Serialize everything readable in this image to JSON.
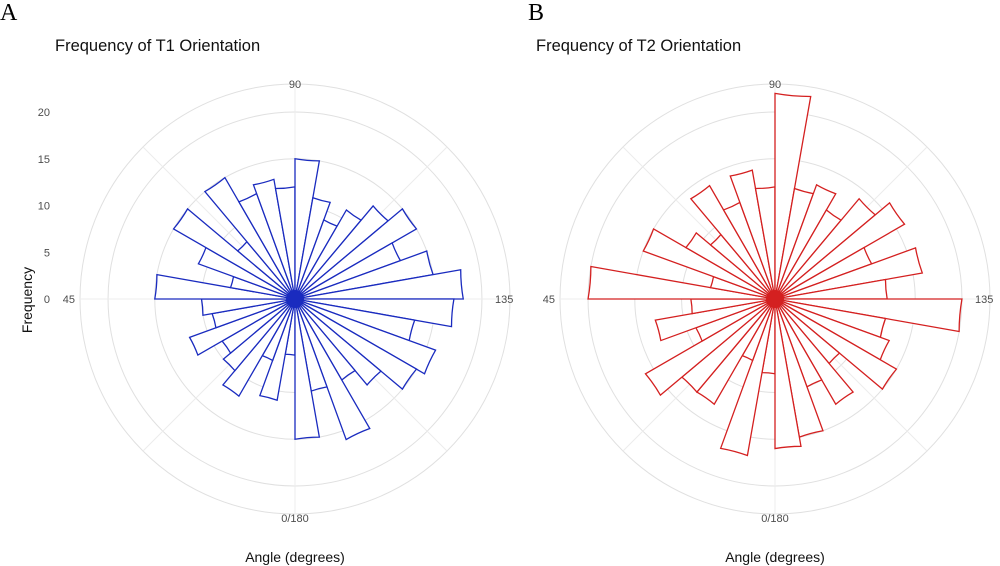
{
  "panels": [
    {
      "letter": "A",
      "title": "Frequency of T1 Orientation",
      "xlabel": "Angle (degrees)",
      "ylabel": "Frequency",
      "color": "#1a2bbf"
    },
    {
      "letter": "B",
      "title": "Frequency of T2 Orientation",
      "xlabel": "Angle (degrees)",
      "ylabel": "",
      "color": "#d42020"
    }
  ],
  "chart_data": [
    {
      "type": "bar",
      "coord": "polar",
      "title": "Frequency of T1 Orientation",
      "xlabel": "Angle (degrees)",
      "ylabel": "Frequency",
      "angle_labels": [
        "0/180",
        "45",
        "90",
        "135"
      ],
      "radial_ticks": [
        0,
        5,
        10,
        15,
        20
      ],
      "rlim": [
        0,
        23
      ],
      "bin_width_deg": 5,
      "grid": true,
      "angles": [
        2.5,
        7.5,
        12.5,
        17.5,
        22.5,
        27.5,
        32.5,
        37.5,
        42.5,
        47.5,
        52.5,
        57.5,
        62.5,
        67.5,
        72.5,
        77.5,
        82.5,
        87.5,
        92.5,
        97.5,
        102.5,
        107.5,
        112.5,
        117.5,
        122.5,
        127.5,
        132.5,
        137.5,
        142.5,
        147.5,
        152.5,
        157.5,
        162.5,
        167.5,
        172.5,
        177.5
      ],
      "values": [
        6,
        11,
        7,
        12,
        10,
        9,
        12,
        9,
        10,
        15,
        7,
        11,
        15,
        8,
        15,
        12,
        13,
        12,
        15,
        11,
        9,
        11,
        13,
        15,
        12,
        15,
        18,
        17,
        13,
        16,
        15,
        12,
        10,
        16,
        10,
        15
      ]
    },
    {
      "type": "bar",
      "coord": "polar",
      "title": "Frequency of T2 Orientation",
      "xlabel": "Angle (degrees)",
      "ylabel": "",
      "angle_labels": [
        "0/180",
        "45",
        "90",
        "135"
      ],
      "radial_ticks": [
        0,
        5,
        10,
        15,
        20
      ],
      "rlim": [
        0,
        23
      ],
      "bin_width_deg": 5,
      "grid": true,
      "angles": [
        2.5,
        7.5,
        12.5,
        17.5,
        22.5,
        27.5,
        32.5,
        37.5,
        42.5,
        47.5,
        52.5,
        57.5,
        62.5,
        67.5,
        72.5,
        77.5,
        82.5,
        87.5,
        92.5,
        97.5,
        102.5,
        107.5,
        112.5,
        117.5,
        122.5,
        127.5,
        132.5,
        137.5,
        142.5,
        147.5,
        152.5,
        157.5,
        162.5,
        167.5,
        172.5,
        177.5
      ],
      "values": [
        8,
        17,
        7,
        13,
        13,
        16,
        9,
        13,
        9,
        20,
        7,
        15,
        11,
        9,
        14,
        11,
        14,
        12,
        22,
        12,
        13,
        11,
        14,
        16,
        11,
        16,
        12,
        20,
        12,
        13,
        15,
        9,
        13,
        10,
        15,
        16
      ]
    }
  ]
}
